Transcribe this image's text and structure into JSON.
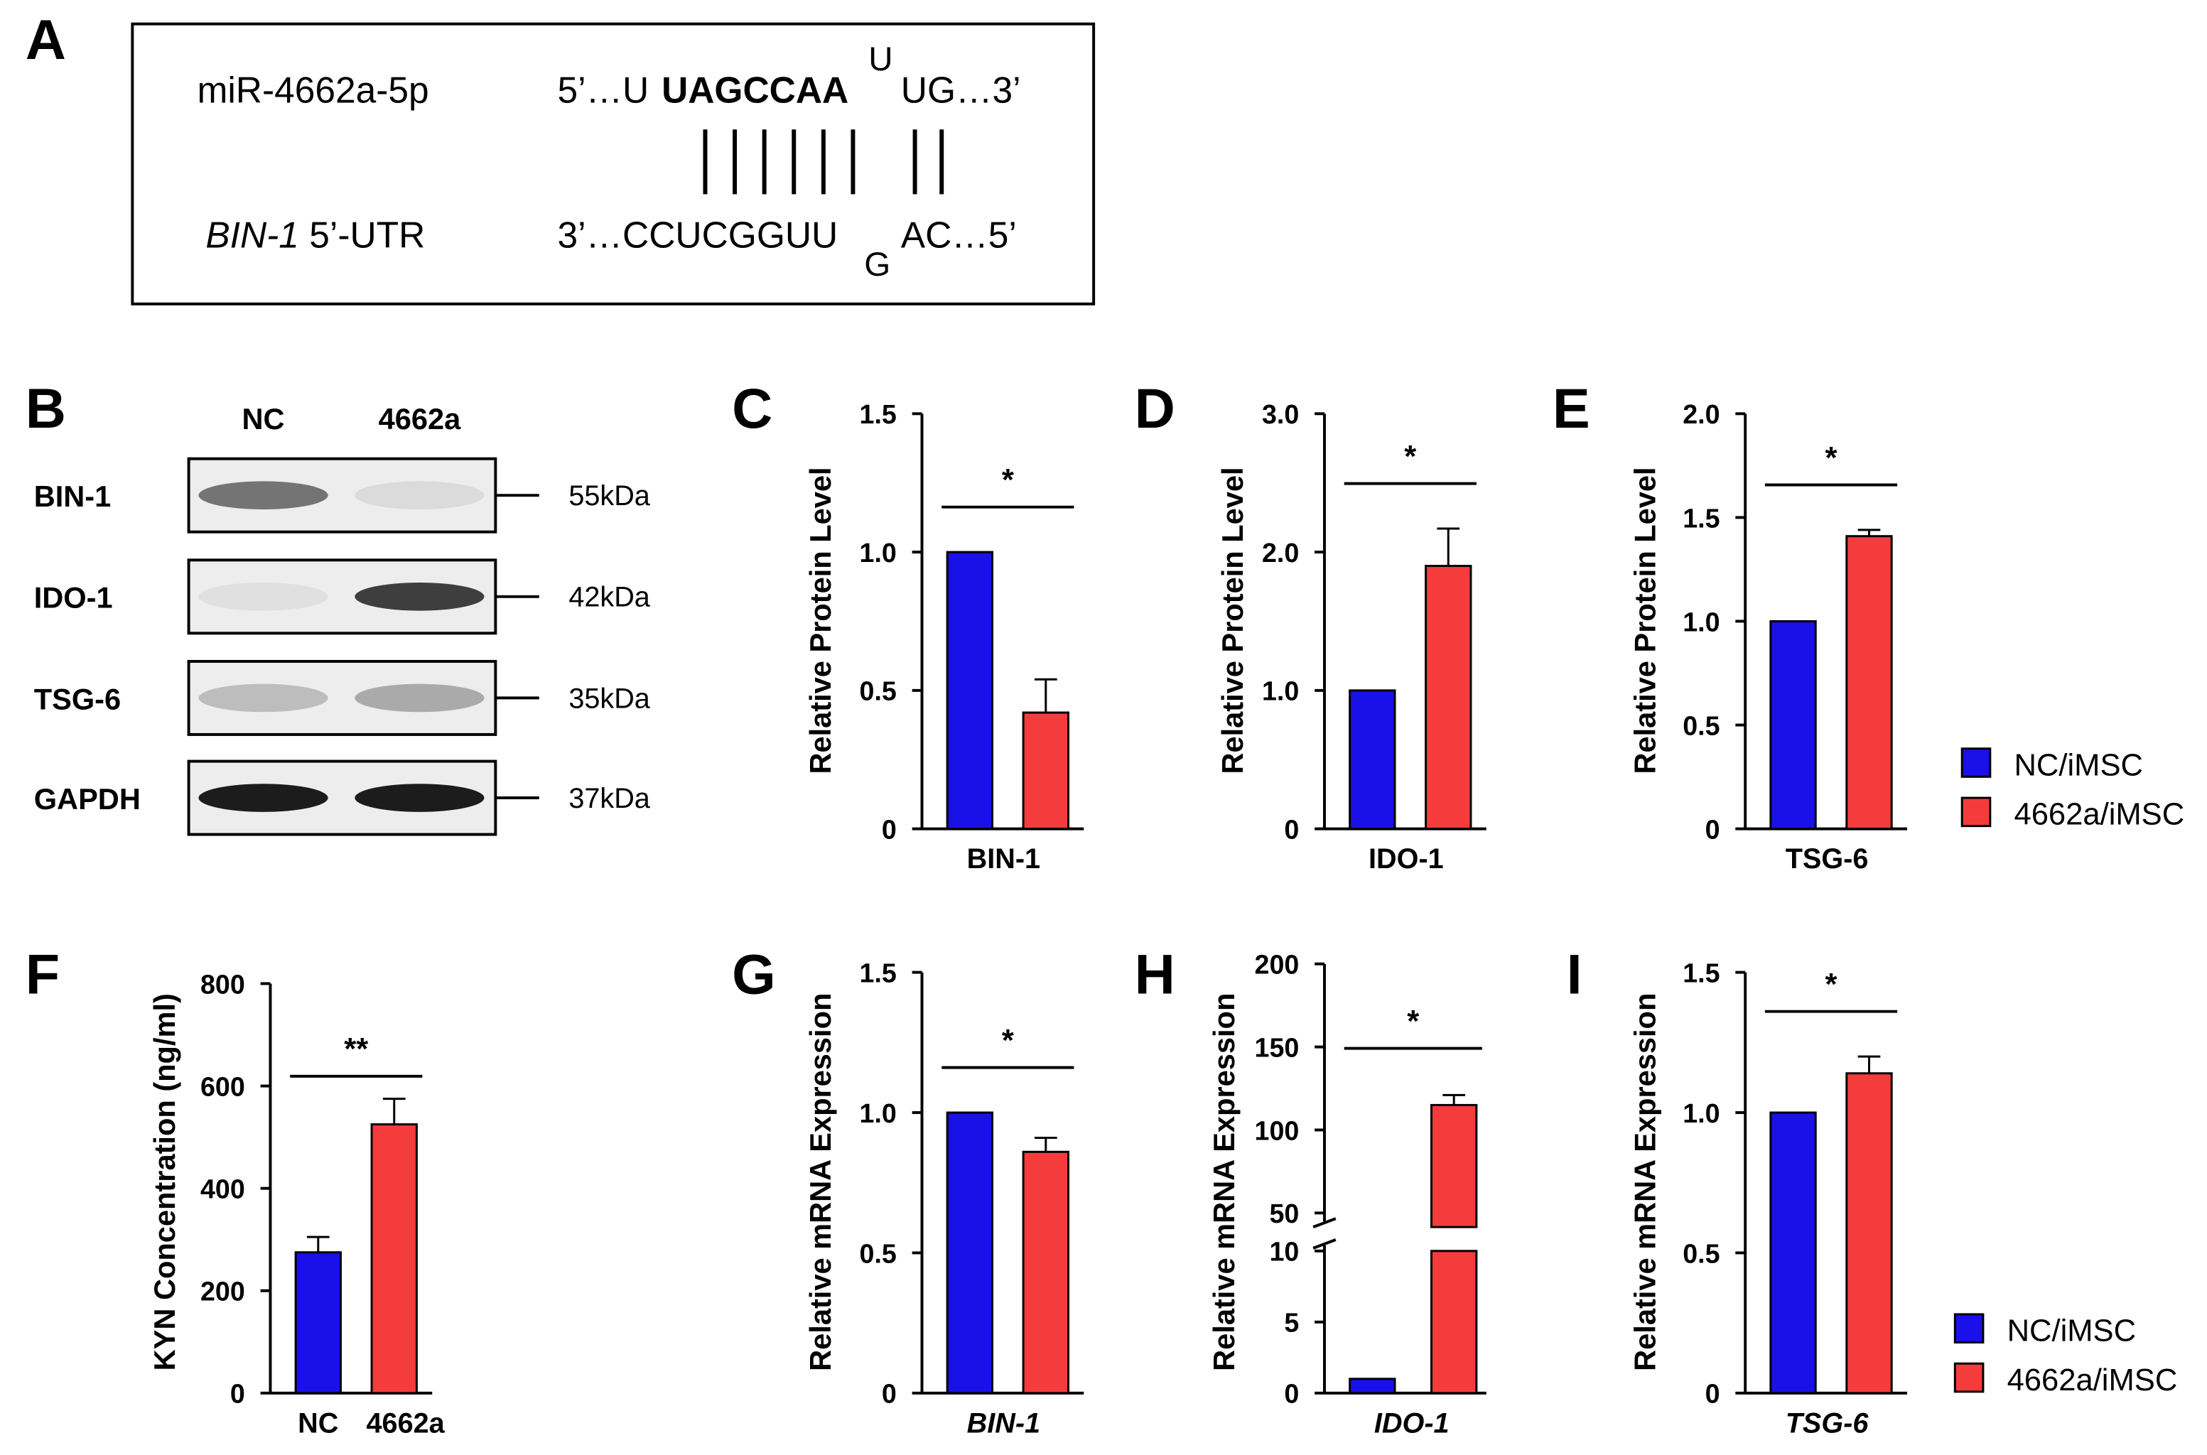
{
  "colors": {
    "nc": "#1a10e8",
    "mir": "#f53c3c",
    "axis": "#000000"
  },
  "panel_letters": [
    "A",
    "B",
    "C",
    "D",
    "E",
    "F",
    "G",
    "H",
    "I"
  ],
  "panel_a": {
    "mirna_label": "miR-4662a-5p",
    "utr_gene": "BIN-1",
    "utr_suffix": " 5’-UTR",
    "mirna_seq_prefix": "5’…U",
    "mirna_seed": "UAGCCAA",
    "mirna_bulge": "U",
    "mirna_seq_suffix": "UG…3’",
    "utr_seq_main": "3’…CCUCGGUU",
    "utr_bulge": "G",
    "utr_seq_suffix": "AC…5’"
  },
  "panel_b": {
    "columns": [
      "NC",
      "4662a"
    ],
    "rows": [
      {
        "protein": "BIN-1",
        "size": "55kDa",
        "nc_intensity": 0.55,
        "mir_intensity": 0.08
      },
      {
        "protein": "IDO-1",
        "size": "42kDa",
        "nc_intensity": 0.06,
        "mir_intensity": 0.8
      },
      {
        "protein": "TSG-6",
        "size": "35kDa",
        "nc_intensity": 0.22,
        "mir_intensity": 0.3
      },
      {
        "protein": "GAPDH",
        "size": "37kDa",
        "nc_intensity": 0.95,
        "mir_intensity": 0.95
      }
    ]
  },
  "legend": {
    "nc": "NC/iMSC",
    "mir": "4662a/iMSC"
  },
  "chart_data": [
    {
      "panel": "C",
      "type": "bar",
      "categories": [
        "NC/iMSC",
        "4662a/iMSC"
      ],
      "values": [
        1.0,
        0.42
      ],
      "errors": [
        0,
        0.12
      ],
      "xlabel": "BIN-1",
      "ylabel": "Relative Protein Level",
      "ylim": [
        0,
        1.5
      ],
      "ticks": [
        "0",
        "0.5",
        "1.0",
        "1.5"
      ],
      "significance": "*"
    },
    {
      "panel": "D",
      "type": "bar",
      "categories": [
        "NC/iMSC",
        "4662a/iMSC"
      ],
      "values": [
        1.0,
        1.9
      ],
      "errors": [
        0,
        0.27
      ],
      "xlabel": "IDO-1",
      "ylabel": "Relative Protein Level",
      "ylim": [
        0,
        3.0
      ],
      "ticks": [
        "0",
        "1.0",
        "2.0",
        "3.0"
      ],
      "significance": "*"
    },
    {
      "panel": "E",
      "type": "bar",
      "categories": [
        "NC/iMSC",
        "4662a/iMSC"
      ],
      "values": [
        1.0,
        1.41
      ],
      "errors": [
        0,
        0.03
      ],
      "xlabel": "TSG-6",
      "ylabel": "Relative Protein Level",
      "ylim": [
        0,
        2.0
      ],
      "ticks": [
        "0",
        "0.5",
        "1.0",
        "1.5",
        "2.0"
      ],
      "significance": "*"
    },
    {
      "panel": "F",
      "type": "bar",
      "categories": [
        "NC",
        "4662a"
      ],
      "values": [
        275,
        525
      ],
      "errors": [
        30,
        50
      ],
      "xlabel": "",
      "ylabel": "KYN Concentration (ng/ml)",
      "ylim": [
        0,
        800
      ],
      "ticks": [
        "0",
        "200",
        "400",
        "600",
        "800"
      ],
      "significance": "**"
    },
    {
      "panel": "G",
      "type": "bar",
      "categories": [
        "NC/iMSC",
        "4662a/iMSC"
      ],
      "values": [
        1.0,
        0.86
      ],
      "errors": [
        0,
        0.05
      ],
      "xlabel": "BIN-1",
      "ylabel": "Relative mRNA Expression",
      "ylim": [
        0,
        1.5
      ],
      "ticks": [
        "0",
        "0.5",
        "1.0",
        "1.5"
      ],
      "significance": "*"
    },
    {
      "panel": "H",
      "type": "bar",
      "categories": [
        "NC/iMSC",
        "4662a/iMSC"
      ],
      "values": [
        1.0,
        115
      ],
      "errors": [
        0,
        6
      ],
      "xlabel": "IDO-1",
      "ylabel": "Relative mRNA Expression",
      "ylim": [
        0,
        200
      ],
      "axis_break": [
        10,
        50
      ],
      "ticks_lower": [
        "0",
        "5",
        "10"
      ],
      "ticks_upper": [
        "50",
        "100",
        "150",
        "200"
      ],
      "significance": "*"
    },
    {
      "panel": "I",
      "type": "bar",
      "categories": [
        "NC/iMSC",
        "4662a/iMSC"
      ],
      "values": [
        1.0,
        1.14
      ],
      "errors": [
        0,
        0.06
      ],
      "xlabel": "TSG-6",
      "ylabel": "Relative mRNA Expression",
      "ylim": [
        0,
        1.5
      ],
      "ticks": [
        "0",
        "0.5",
        "1.0",
        "1.5"
      ],
      "significance": "*"
    }
  ]
}
